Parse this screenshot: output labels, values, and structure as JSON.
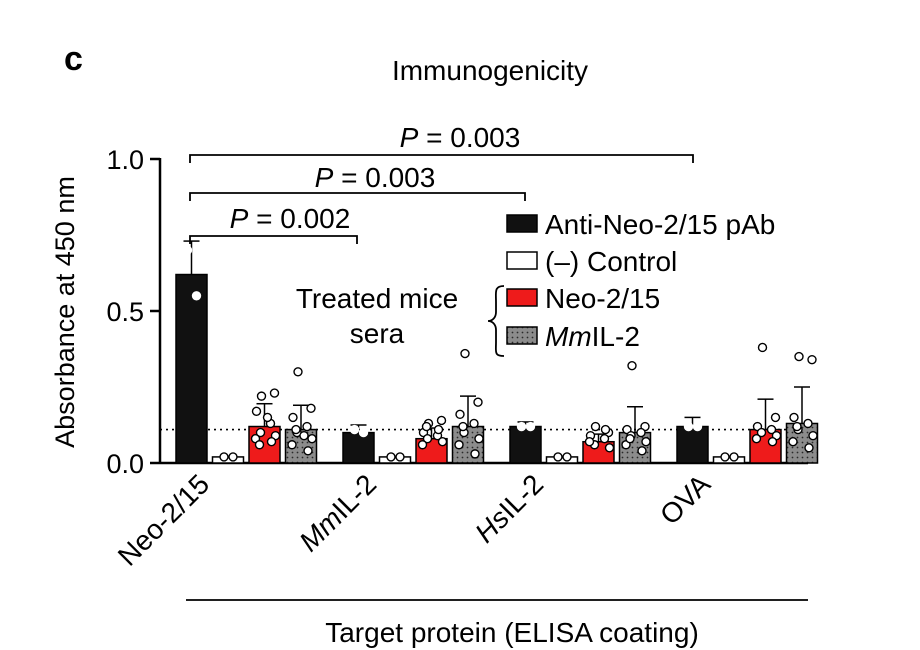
{
  "panel_label": "c",
  "chart_data": {
    "type": "bar",
    "title": "Immunogenicity",
    "xlabel": "Target protein (ELISA coating)",
    "ylabel": "Absorbance at 450 nm",
    "ylim": [
      0,
      1.0
    ],
    "yticks": [
      "0.0",
      "0.5",
      "1.0"
    ],
    "categories": [
      {
        "pre": "",
        "italic": "",
        "post": "Neo-2/15"
      },
      {
        "pre": "",
        "italic": "Mm",
        "post": "IL-2"
      },
      {
        "pre": "",
        "italic": "Hs",
        "post": "IL-2"
      },
      {
        "pre": "",
        "italic": "",
        "post": "OVA"
      }
    ],
    "series": [
      {
        "name": "Anti-Neo-2/15 pAb",
        "color": "#111111",
        "pattern": "solid",
        "values": [
          0.62,
          0.1,
          0.12,
          0.12
        ],
        "errors": [
          0.11,
          0.025,
          0.015,
          0.03
        ],
        "points": [
          [
            0.7,
            0.55
          ],
          [
            0.11,
            0.1
          ],
          [
            0.12,
            0.12
          ],
          [
            0.12,
            0.12
          ]
        ]
      },
      {
        "name": "(–) Control",
        "color": "#ffffff",
        "pattern": "open",
        "values": [
          0.02,
          0.02,
          0.02,
          0.02
        ],
        "errors": [
          0,
          0,
          0,
          0
        ],
        "points": [
          [
            0.02,
            0.02
          ],
          [
            0.02,
            0.02
          ],
          [
            0.02,
            0.02
          ],
          [
            0.02,
            0.02
          ]
        ]
      },
      {
        "name": "Neo-2/15",
        "color": "#ee1b1b",
        "pattern": "solid",
        "values": [
          0.12,
          0.08,
          0.07,
          0.11
        ],
        "errors": [
          0.075,
          0.035,
          0.025,
          0.1
        ],
        "points": [
          [
            0.22,
            0.23,
            0.17,
            0.13,
            0.1,
            0.09,
            0.08,
            0.07,
            0.06,
            0.15
          ],
          [
            0.13,
            0.14,
            0.1,
            0.09,
            0.08,
            0.07,
            0.06,
            0.11,
            0.12
          ],
          [
            0.12,
            0.1,
            0.09,
            0.08,
            0.06,
            0.05,
            0.07,
            0.11
          ],
          [
            0.38,
            0.15,
            0.12,
            0.11,
            0.1,
            0.09,
            0.08,
            0.07
          ]
        ]
      },
      {
        "name": "MmIL-2",
        "name_italic": "Mm",
        "name_rest": "IL-2",
        "color": "#8c8c8c",
        "pattern": "dotted",
        "values": [
          0.11,
          0.12,
          0.1,
          0.13
        ],
        "errors": [
          0.08,
          0.1,
          0.085,
          0.12
        ],
        "points": [
          [
            0.3,
            0.18,
            0.15,
            0.12,
            0.1,
            0.08,
            0.06,
            0.04,
            0.11,
            0.09
          ],
          [
            0.36,
            0.2,
            0.16,
            0.13,
            0.1,
            0.08,
            0.06,
            0.03,
            0.12
          ],
          [
            0.32,
            0.12,
            0.11,
            0.1,
            0.09,
            0.07,
            0.06,
            0.04,
            0.08
          ],
          [
            0.35,
            0.34,
            0.15,
            0.13,
            0.11,
            0.09,
            0.07,
            0.05,
            0.12
          ]
        ]
      }
    ],
    "threshold": 0.11,
    "legend_position": "right",
    "legend_group_label": [
      "Treated mice",
      "sera"
    ],
    "annotations": [
      {
        "p_italic": "P",
        "text": " = 0.002",
        "from_category": 0,
        "to_category": 1
      },
      {
        "p_italic": "P",
        "text": " = 0.003",
        "from_category": 0,
        "to_category": 2
      },
      {
        "p_italic": "P",
        "text": " = 0.003",
        "from_category": 0,
        "to_category": 3
      }
    ]
  }
}
